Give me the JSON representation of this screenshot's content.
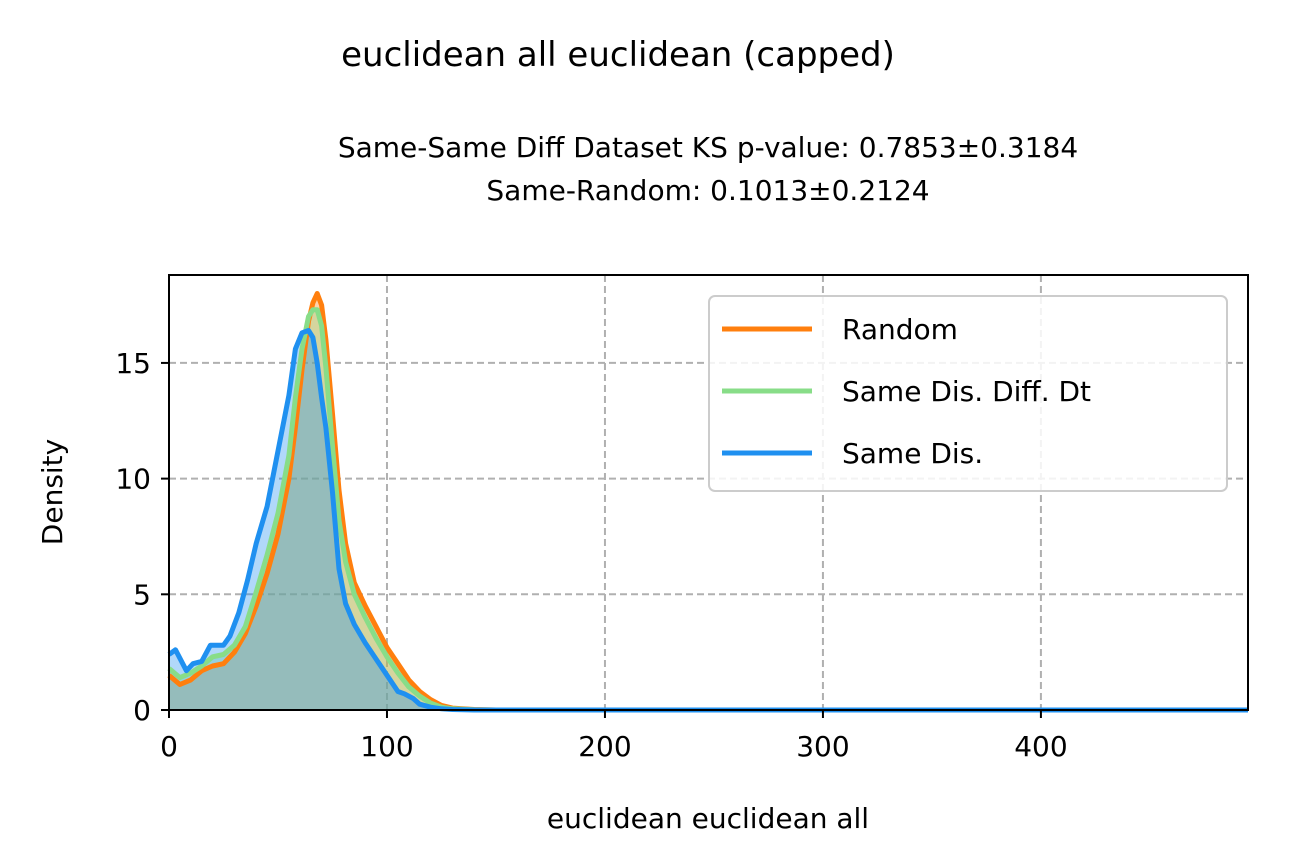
{
  "chart_data": {
    "type": "area",
    "title": "euclidean all euclidean (capped)",
    "subtitle_lines": [
      "Same-Same Diff Dataset  KS p-value: 0.7853±0.3184",
      "Same-Random: 0.1013±0.2124"
    ],
    "xlabel": "euclidean euclidean all",
    "ylabel": "Density",
    "xlim": [
      0,
      495
    ],
    "ylim": [
      0,
      18.8
    ],
    "xticks": [
      0,
      100,
      200,
      300,
      400
    ],
    "yticks": [
      0,
      5,
      10,
      15
    ],
    "grid": true,
    "legend_position": "upper right",
    "series": [
      {
        "name": "Random",
        "color": "#ff7f0e",
        "x": [
          0,
          5,
          10,
          15,
          20,
          25,
          30,
          35,
          40,
          45,
          50,
          55,
          58,
          61,
          64,
          66,
          68,
          70,
          72,
          75,
          78,
          81,
          85,
          90,
          95,
          100,
          105,
          110,
          115,
          120,
          125,
          130,
          140,
          150,
          200,
          300,
          400,
          495
        ],
        "y": [
          1.5,
          1.1,
          1.3,
          1.7,
          1.9,
          2.0,
          2.5,
          3.3,
          4.5,
          5.9,
          7.6,
          10.0,
          12.2,
          14.7,
          16.8,
          17.6,
          18.0,
          17.5,
          16.0,
          12.8,
          9.5,
          7.2,
          5.5,
          4.5,
          3.6,
          2.7,
          2.0,
          1.3,
          0.8,
          0.45,
          0.2,
          0.08,
          0.02,
          0.0,
          0.0,
          0.0,
          0.0,
          0.0
        ]
      },
      {
        "name": "Same Dis. Diff. Dt",
        "color": "#88dd88",
        "x": [
          0,
          5,
          10,
          15,
          20,
          25,
          30,
          35,
          40,
          45,
          50,
          55,
          58,
          61,
          64,
          66,
          68,
          70,
          72,
          75,
          78,
          81,
          85,
          90,
          95,
          100,
          105,
          110,
          115,
          120,
          125,
          130,
          140,
          150,
          200,
          300,
          400,
          495
        ],
        "y": [
          1.8,
          1.4,
          1.6,
          1.9,
          2.3,
          2.4,
          2.8,
          3.6,
          5.1,
          6.7,
          8.5,
          11.0,
          13.5,
          15.6,
          17.0,
          17.3,
          17.3,
          16.6,
          14.8,
          11.4,
          8.2,
          6.4,
          5.0,
          4.0,
          3.1,
          2.3,
          1.6,
          1.0,
          0.6,
          0.3,
          0.12,
          0.05,
          0.01,
          0.0,
          0.0,
          0.0,
          0.0,
          0.0
        ]
      },
      {
        "name": "Same Dis.",
        "color": "#1f90f0",
        "x": [
          0,
          3,
          8,
          11,
          15,
          19,
          22,
          25,
          28,
          32,
          36,
          40,
          45,
          50,
          55,
          58,
          61,
          64,
          66,
          68,
          70,
          72,
          75,
          78,
          81,
          85,
          90,
          95,
          100,
          105,
          108,
          112,
          115,
          120,
          125,
          130,
          140,
          150,
          200,
          300,
          400,
          495
        ],
        "y": [
          2.4,
          2.6,
          1.7,
          2.0,
          2.1,
          2.8,
          2.8,
          2.8,
          3.2,
          4.2,
          5.6,
          7.2,
          8.8,
          11.2,
          13.6,
          15.6,
          16.3,
          16.4,
          16.1,
          15.0,
          13.5,
          12.2,
          9.4,
          6.1,
          4.6,
          3.7,
          2.9,
          2.2,
          1.5,
          0.8,
          0.7,
          0.5,
          0.25,
          0.12,
          0.05,
          0.02,
          0.0,
          0.0,
          0.0,
          0.0,
          0.0,
          0.0
        ]
      }
    ]
  }
}
